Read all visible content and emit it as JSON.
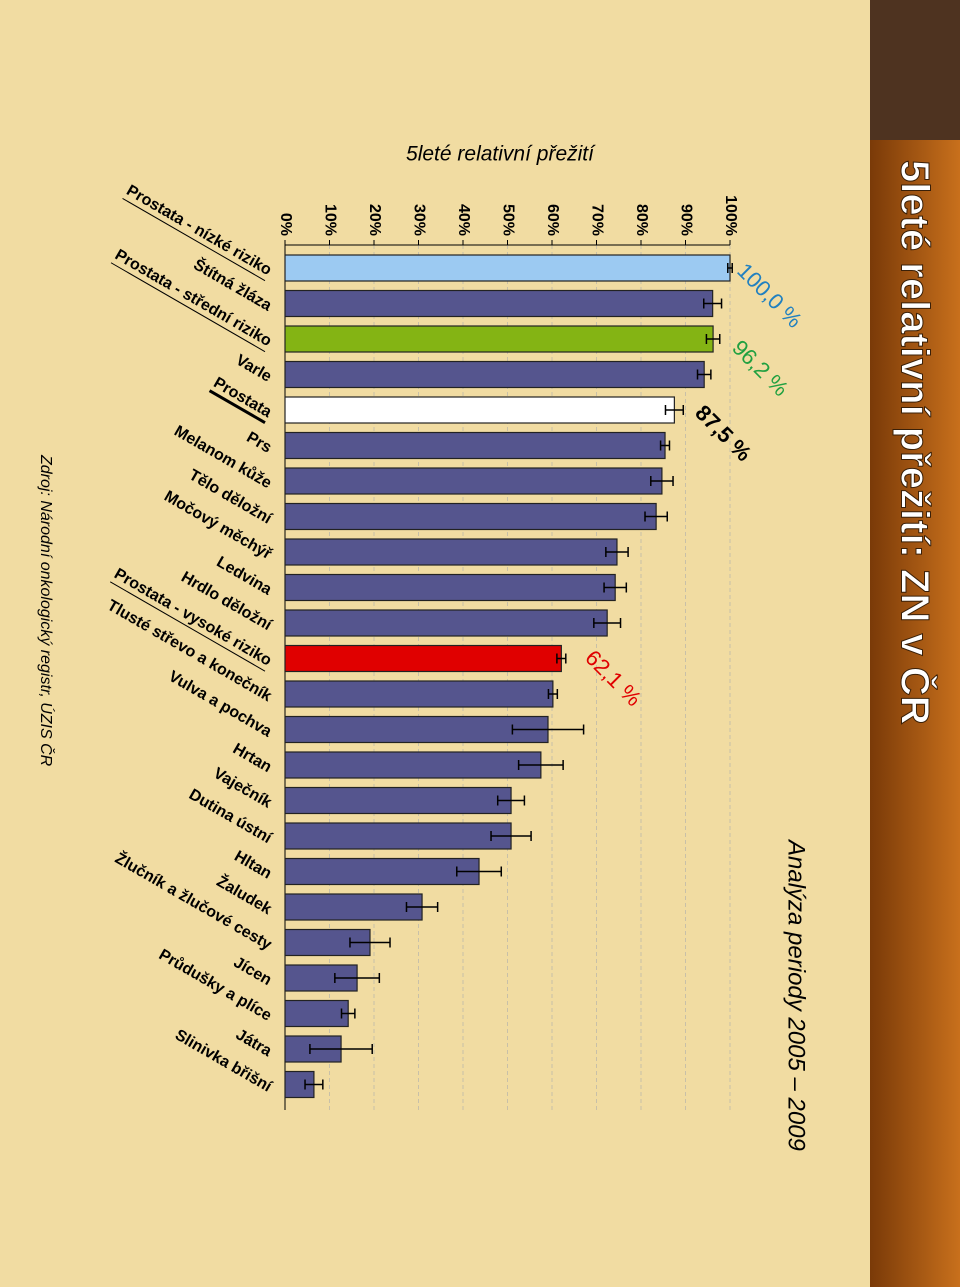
{
  "chart_data": {
    "type": "bar",
    "title": "5leté relativní přežití: ZN v ČR",
    "chart_title": "5leté relativní přežití",
    "subtitle": "Analýza periody 2005 – 2009",
    "source": "Zdroj: Národní onkologický registr, ÚZIS ČR",
    "categories": [
      "Prostata - nízké riziko",
      "Štítná žláza",
      "Prostata - střední riziko",
      "Varle",
      "Prostata",
      "Prs",
      "Melanom kůže",
      "Tělo děložní",
      "Močový měchýř",
      "Ledvina",
      "Hrdlo děložní",
      "Prostata - vysoké riziko",
      "Tlusté střevo a konečník",
      "Vulva a pochva",
      "Hrtan",
      "Vaječník",
      "Dutina ústní",
      "Hltan",
      "Žaludek",
      "Žlučník a žlučové cesty",
      "Jícen",
      "Průdušky a plíce",
      "Játra",
      "Slinivka břišní"
    ],
    "values": [
      100,
      96.1,
      96.2,
      94.2,
      87.5,
      85.4,
      84.7,
      83.4,
      74.6,
      74.2,
      72.4,
      62.1,
      60.2,
      59.1,
      57.5,
      50.8,
      50.8,
      43.6,
      30.8,
      19.1,
      16.2,
      14.2,
      12.6,
      6.5
    ],
    "errors": [
      0.5,
      2,
      1.5,
      1.5,
      2,
      1,
      2.5,
      2.5,
      2.5,
      2.5,
      3,
      1,
      1,
      8,
      5,
      3,
      4.5,
      5,
      3.5,
      4.5,
      5,
      1.5,
      7,
      2
    ],
    "colors": [
      "#9ccaf2",
      "#55558e",
      "#84b414",
      "#55558e",
      "#ffffff",
      "#55558e",
      "#55558e",
      "#55558e",
      "#55558e",
      "#55558e",
      "#55558e",
      "#e00000",
      "#55558e",
      "#55558e",
      "#55558e",
      "#55558e",
      "#55558e",
      "#55558e",
      "#55558e",
      "#55558e",
      "#55558e",
      "#55558e",
      "#55558e",
      "#55558e"
    ],
    "ylim": [
      0,
      100
    ],
    "yticks": [
      {
        "value": 0,
        "label": "0%"
      },
      {
        "value": 10,
        "label": "10%"
      },
      {
        "value": 20,
        "label": "20%"
      },
      {
        "value": 30,
        "label": "30%"
      },
      {
        "value": 40,
        "label": "40%"
      },
      {
        "value": 50,
        "label": "50%"
      },
      {
        "value": 60,
        "label": "60%"
      },
      {
        "value": 70,
        "label": "70%"
      },
      {
        "value": 80,
        "label": "80%"
      },
      {
        "value": 90,
        "label": "90%"
      },
      {
        "value": 100,
        "label": "100%"
      }
    ],
    "grid": true,
    "annotations": [
      {
        "text": "100,0 %",
        "color": "#2080c0"
      },
      {
        "text": "96,2 %",
        "color": "#20a040"
      },
      {
        "text": "87,5 %",
        "color": "#000000"
      },
      {
        "text": "62,1 %",
        "color": "#e00000"
      }
    ]
  }
}
